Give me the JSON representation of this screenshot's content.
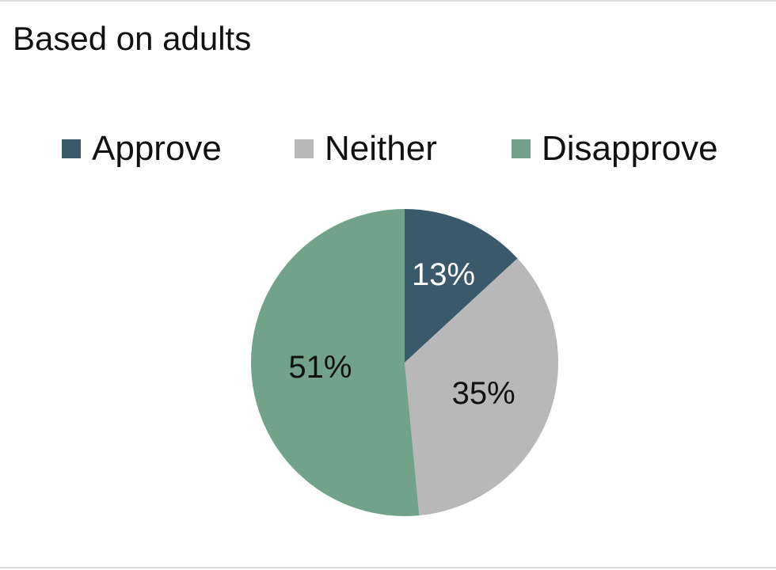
{
  "chart_data": {
    "type": "pie",
    "title": "Based on adults",
    "legend_position": "top",
    "slices": [
      {
        "label": "Approve",
        "value": 13,
        "value_label": "13%",
        "color": "#3a5a6b",
        "text_color": "#ffffff"
      },
      {
        "label": "Neither",
        "value": 35,
        "value_label": "35%",
        "color": "#b8b8b8",
        "text_color": "#111111"
      },
      {
        "label": "Disapprove",
        "value": 51,
        "value_label": "51%",
        "color": "#72a38a",
        "text_color": "#111111"
      }
    ]
  }
}
